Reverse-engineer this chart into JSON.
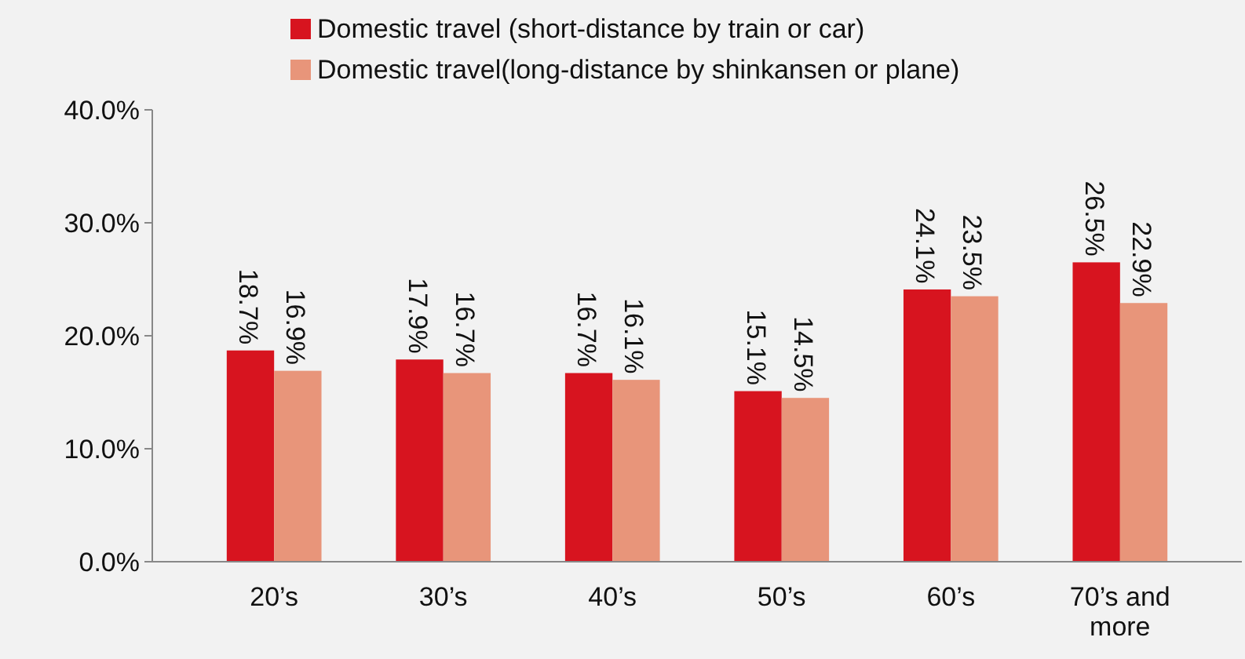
{
  "chart_data": {
    "type": "bar",
    "categories": [
      "20’s",
      "30’s",
      "40’s",
      "50’s",
      "60’s",
      "70’s and more"
    ],
    "series": [
      {
        "name": "Domestic travel (short-distance by train or car)",
        "color": "#d7141f",
        "values": [
          18.7,
          17.9,
          16.7,
          15.1,
          24.1,
          26.5
        ],
        "value_labels": [
          "18.7%",
          "17.9%",
          "16.7%",
          "15.1%",
          "24.1%",
          "26.5%"
        ]
      },
      {
        "name": "Domestic travel(long-distance by shinkansen or plane)",
        "color": "#e8957a",
        "values": [
          16.9,
          16.7,
          16.1,
          14.5,
          23.5,
          22.9
        ],
        "value_labels": [
          "16.9%",
          "16.7%",
          "16.1%",
          "14.5%",
          "23.5%",
          "22.9%"
        ]
      }
    ],
    "ylim": [
      0,
      40
    ],
    "yticks": [
      {
        "value": 0,
        "label": "0.0%"
      },
      {
        "value": 10,
        "label": "10.0%"
      },
      {
        "value": 20,
        "label": "20.0%"
      },
      {
        "value": 30,
        "label": "30.0%"
      },
      {
        "value": 40,
        "label": "40.0%"
      }
    ],
    "grid": false,
    "legend": "top"
  }
}
